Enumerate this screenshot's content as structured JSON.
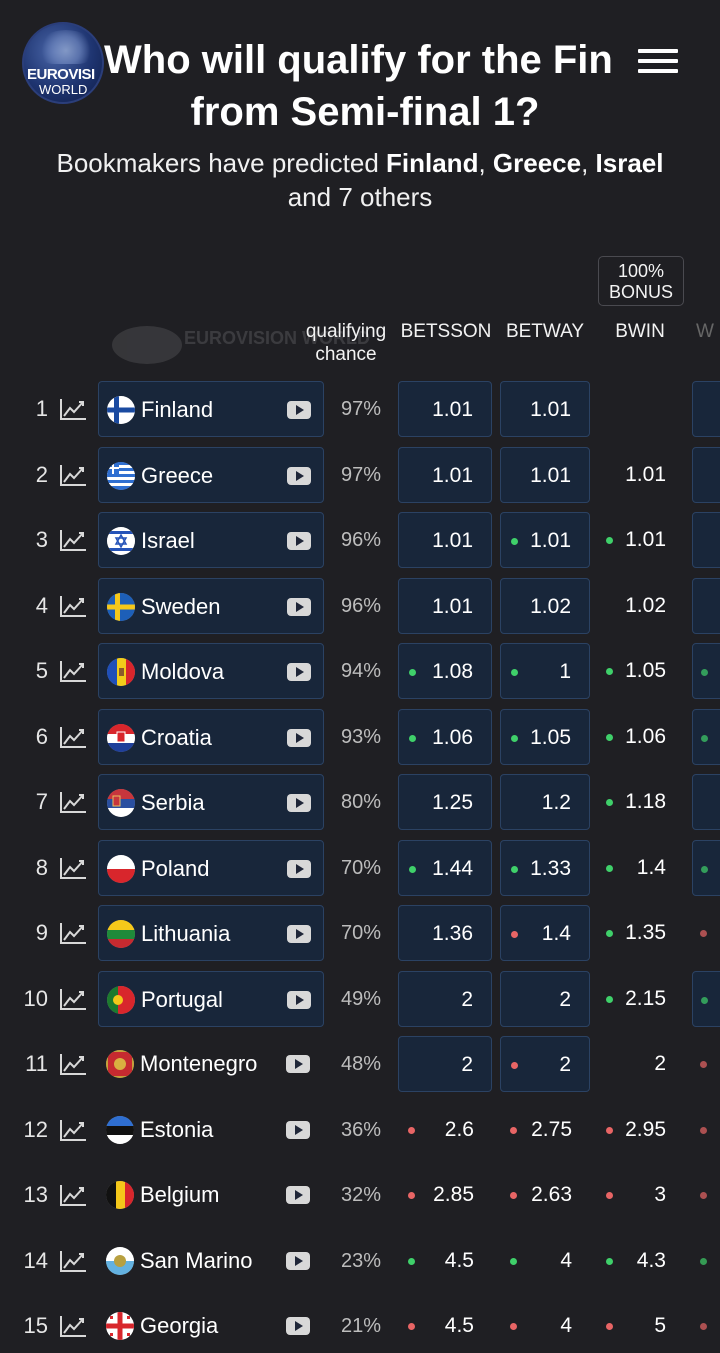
{
  "header": {
    "logo": {
      "line1": "EUROVISI",
      "line2": "WORLD"
    },
    "title_line1": "Who will qualify for the Fin",
    "title_line2": "from Semi-final 1?",
    "menu_icon": "hamburger-menu-icon"
  },
  "subtitle": {
    "prefix": "Bookmakers have predicted ",
    "c1": "Finland",
    "sep1": ", ",
    "c2": "Greece",
    "sep2": ", ",
    "c3": "Israel",
    "suffix": "and 7 others"
  },
  "watermark": "EUROVISION WORLD",
  "bonus_badge": "100% BONUS",
  "columns": {
    "chance": "qualifying chance",
    "bm1": "BETSSON",
    "bm2": "BETWAY",
    "bm3": "BWIN",
    "bm4": "W"
  },
  "colors": {
    "green": "#3fd06a",
    "red": "#e86565",
    "box": "#18263a"
  },
  "rows": [
    {
      "rank": "1",
      "country": "Finland",
      "flag": "finland",
      "boxed": true,
      "chance": "97%",
      "odds": [
        {
          "v": "1.01",
          "d": "",
          "b": true
        },
        {
          "v": "1.01",
          "d": "",
          "b": true
        },
        {
          "v": "",
          "d": "",
          "b": false
        }
      ],
      "edge": {
        "d": "",
        "b": true
      }
    },
    {
      "rank": "2",
      "country": "Greece",
      "flag": "greece",
      "boxed": true,
      "chance": "97%",
      "odds": [
        {
          "v": "1.01",
          "d": "",
          "b": true
        },
        {
          "v": "1.01",
          "d": "",
          "b": true
        },
        {
          "v": "1.01",
          "d": "",
          "b": false
        }
      ],
      "edge": {
        "d": "",
        "b": true
      }
    },
    {
      "rank": "3",
      "country": "Israel",
      "flag": "israel",
      "boxed": true,
      "chance": "96%",
      "odds": [
        {
          "v": "1.01",
          "d": "",
          "b": true
        },
        {
          "v": "1.01",
          "d": "green",
          "b": true
        },
        {
          "v": "1.01",
          "d": "green",
          "b": false
        }
      ],
      "edge": {
        "d": "",
        "b": true
      }
    },
    {
      "rank": "4",
      "country": "Sweden",
      "flag": "sweden",
      "boxed": true,
      "chance": "96%",
      "odds": [
        {
          "v": "1.01",
          "d": "",
          "b": true
        },
        {
          "v": "1.02",
          "d": "",
          "b": true
        },
        {
          "v": "1.02",
          "d": "",
          "b": false
        }
      ],
      "edge": {
        "d": "",
        "b": true
      }
    },
    {
      "rank": "5",
      "country": "Moldova",
      "flag": "moldova",
      "boxed": true,
      "chance": "94%",
      "odds": [
        {
          "v": "1.08",
          "d": "green",
          "b": true
        },
        {
          "v": "1",
          "d": "green",
          "b": true
        },
        {
          "v": "1.05",
          "d": "green",
          "b": false
        }
      ],
      "edge": {
        "d": "green",
        "b": true
      }
    },
    {
      "rank": "6",
      "country": "Croatia",
      "flag": "croatia",
      "boxed": true,
      "chance": "93%",
      "odds": [
        {
          "v": "1.06",
          "d": "green",
          "b": true
        },
        {
          "v": "1.05",
          "d": "green",
          "b": true
        },
        {
          "v": "1.06",
          "d": "green",
          "b": false
        }
      ],
      "edge": {
        "d": "green",
        "b": true
      }
    },
    {
      "rank": "7",
      "country": "Serbia",
      "flag": "serbia",
      "boxed": true,
      "chance": "80%",
      "odds": [
        {
          "v": "1.25",
          "d": "",
          "b": true
        },
        {
          "v": "1.2",
          "d": "",
          "b": true
        },
        {
          "v": "1.18",
          "d": "green",
          "b": false
        }
      ],
      "edge": {
        "d": "",
        "b": true
      }
    },
    {
      "rank": "8",
      "country": "Poland",
      "flag": "poland",
      "boxed": true,
      "chance": "70%",
      "odds": [
        {
          "v": "1.44",
          "d": "green",
          "b": true
        },
        {
          "v": "1.33",
          "d": "green",
          "b": true
        },
        {
          "v": "1.4",
          "d": "green",
          "b": false
        }
      ],
      "edge": {
        "d": "green",
        "b": true
      }
    },
    {
      "rank": "9",
      "country": "Lithuania",
      "flag": "lithuania",
      "boxed": true,
      "chance": "70%",
      "odds": [
        {
          "v": "1.36",
          "d": "",
          "b": true
        },
        {
          "v": "1.4",
          "d": "red",
          "b": true
        },
        {
          "v": "1.35",
          "d": "green",
          "b": false
        }
      ],
      "edge": {
        "d": "red",
        "b": false
      }
    },
    {
      "rank": "10",
      "country": "Portugal",
      "flag": "portugal",
      "boxed": true,
      "chance": "49%",
      "odds": [
        {
          "v": "2",
          "d": "",
          "b": true
        },
        {
          "v": "2",
          "d": "",
          "b": true
        },
        {
          "v": "2.15",
          "d": "green",
          "b": false
        }
      ],
      "edge": {
        "d": "green",
        "b": true
      }
    },
    {
      "rank": "11",
      "country": "Montenegro",
      "flag": "montenegro",
      "boxed": false,
      "chance": "48%",
      "odds": [
        {
          "v": "2",
          "d": "",
          "b": true
        },
        {
          "v": "2",
          "d": "red",
          "b": true
        },
        {
          "v": "2",
          "d": "",
          "b": false
        }
      ],
      "edge": {
        "d": "red",
        "b": false
      }
    },
    {
      "rank": "12",
      "country": "Estonia",
      "flag": "estonia",
      "boxed": false,
      "chance": "36%",
      "odds": [
        {
          "v": "2.6",
          "d": "red",
          "b": false
        },
        {
          "v": "2.75",
          "d": "red",
          "b": false
        },
        {
          "v": "2.95",
          "d": "red",
          "b": false
        }
      ],
      "edge": {
        "d": "red",
        "b": false
      }
    },
    {
      "rank": "13",
      "country": "Belgium",
      "flag": "belgium",
      "boxed": false,
      "chance": "32%",
      "odds": [
        {
          "v": "2.85",
          "d": "red",
          "b": false
        },
        {
          "v": "2.63",
          "d": "red",
          "b": false
        },
        {
          "v": "3",
          "d": "red",
          "b": false
        }
      ],
      "edge": {
        "d": "red",
        "b": false
      }
    },
    {
      "rank": "14",
      "country": "San Marino",
      "flag": "sanmarino",
      "boxed": false,
      "chance": "23%",
      "odds": [
        {
          "v": "4.5",
          "d": "green",
          "b": false
        },
        {
          "v": "4",
          "d": "green",
          "b": false
        },
        {
          "v": "4.3",
          "d": "green",
          "b": false
        }
      ],
      "edge": {
        "d": "green",
        "b": false
      }
    },
    {
      "rank": "15",
      "country": "Georgia",
      "flag": "georgia",
      "boxed": false,
      "chance": "21%",
      "odds": [
        {
          "v": "4.5",
          "d": "red",
          "b": false
        },
        {
          "v": "4",
          "d": "red",
          "b": false
        },
        {
          "v": "5",
          "d": "red",
          "b": false
        }
      ],
      "edge": {
        "d": "red",
        "b": false
      }
    }
  ]
}
